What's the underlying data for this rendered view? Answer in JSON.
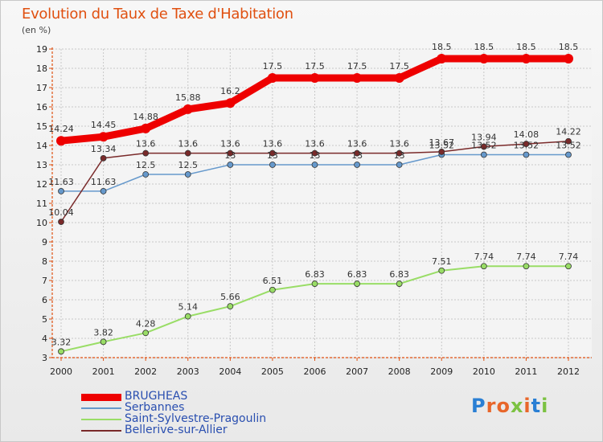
{
  "chart_data": {
    "type": "line",
    "title": "Evolution du Taux de Taxe d'Habitation",
    "subtitle": "(en %)",
    "x": [
      "2000",
      "2001",
      "2002",
      "2003",
      "2004",
      "2005",
      "2006",
      "2007",
      "2008",
      "2009",
      "2010",
      "2011",
      "2012"
    ],
    "ylim": [
      3,
      19
    ],
    "yticks": [
      3,
      4,
      5,
      6,
      7,
      8,
      9,
      10,
      11,
      12,
      13,
      14,
      15,
      16,
      17,
      18,
      19
    ],
    "grid": true,
    "legend_position": "bottom-left",
    "series": [
      {
        "name": "BRUGHEAS",
        "color": "#ee0000",
        "values": [
          14.24,
          14.45,
          14.88,
          15.88,
          16.2,
          17.5,
          17.5,
          17.5,
          17.5,
          18.5,
          18.5,
          18.5,
          18.5
        ],
        "labels": [
          "14.24",
          "14.45",
          "14.88",
          "15.88",
          "16.2",
          "17.5",
          "17.5",
          "17.5",
          "17.5",
          "18.5",
          "18.5",
          "18.5",
          "18.5"
        ]
      },
      {
        "name": "Serbannes",
        "color": "#6699cc",
        "values": [
          11.63,
          11.63,
          12.5,
          12.5,
          13,
          13,
          13,
          13,
          13,
          13.52,
          13.52,
          13.52,
          13.52
        ],
        "labels": [
          "11.63",
          "11.63",
          "12.5",
          "12.5",
          "13",
          "13",
          "13",
          "13",
          "13",
          "13.52",
          "13.52",
          "13.52",
          "13.52"
        ]
      },
      {
        "name": "Saint-Sylvestre-Pragoulin",
        "color": "#99dd66",
        "values": [
          3.32,
          3.82,
          4.28,
          5.14,
          5.66,
          6.51,
          6.83,
          6.83,
          6.83,
          7.51,
          7.74,
          7.74,
          7.74
        ],
        "labels": [
          "3.32",
          "3.82",
          "4.28",
          "5.14",
          "5.66",
          "6.51",
          "6.83",
          "6.83",
          "6.83",
          "7.51",
          "7.74",
          "7.74",
          "7.74"
        ]
      },
      {
        "name": "Bellerive-sur-Allier",
        "color": "#7a2a2a",
        "values": [
          10.04,
          13.34,
          13.6,
          13.6,
          13.6,
          13.6,
          13.6,
          13.6,
          13.6,
          13.67,
          13.94,
          14.08,
          14.22
        ],
        "labels": [
          "10.04",
          "13.34",
          "13.6",
          "13.6",
          "13.6",
          "13.6",
          "13.6",
          "13.6",
          "13.6",
          "13.67",
          "13.94",
          "14.08",
          "14.22"
        ]
      }
    ]
  },
  "logo": {
    "text": "Proxiti",
    "colors": [
      "#2a7fd4",
      "#e8662a",
      "#e8662a",
      "#7cc242",
      "#e8662a",
      "#2a7fd4",
      "#7cc242"
    ]
  }
}
